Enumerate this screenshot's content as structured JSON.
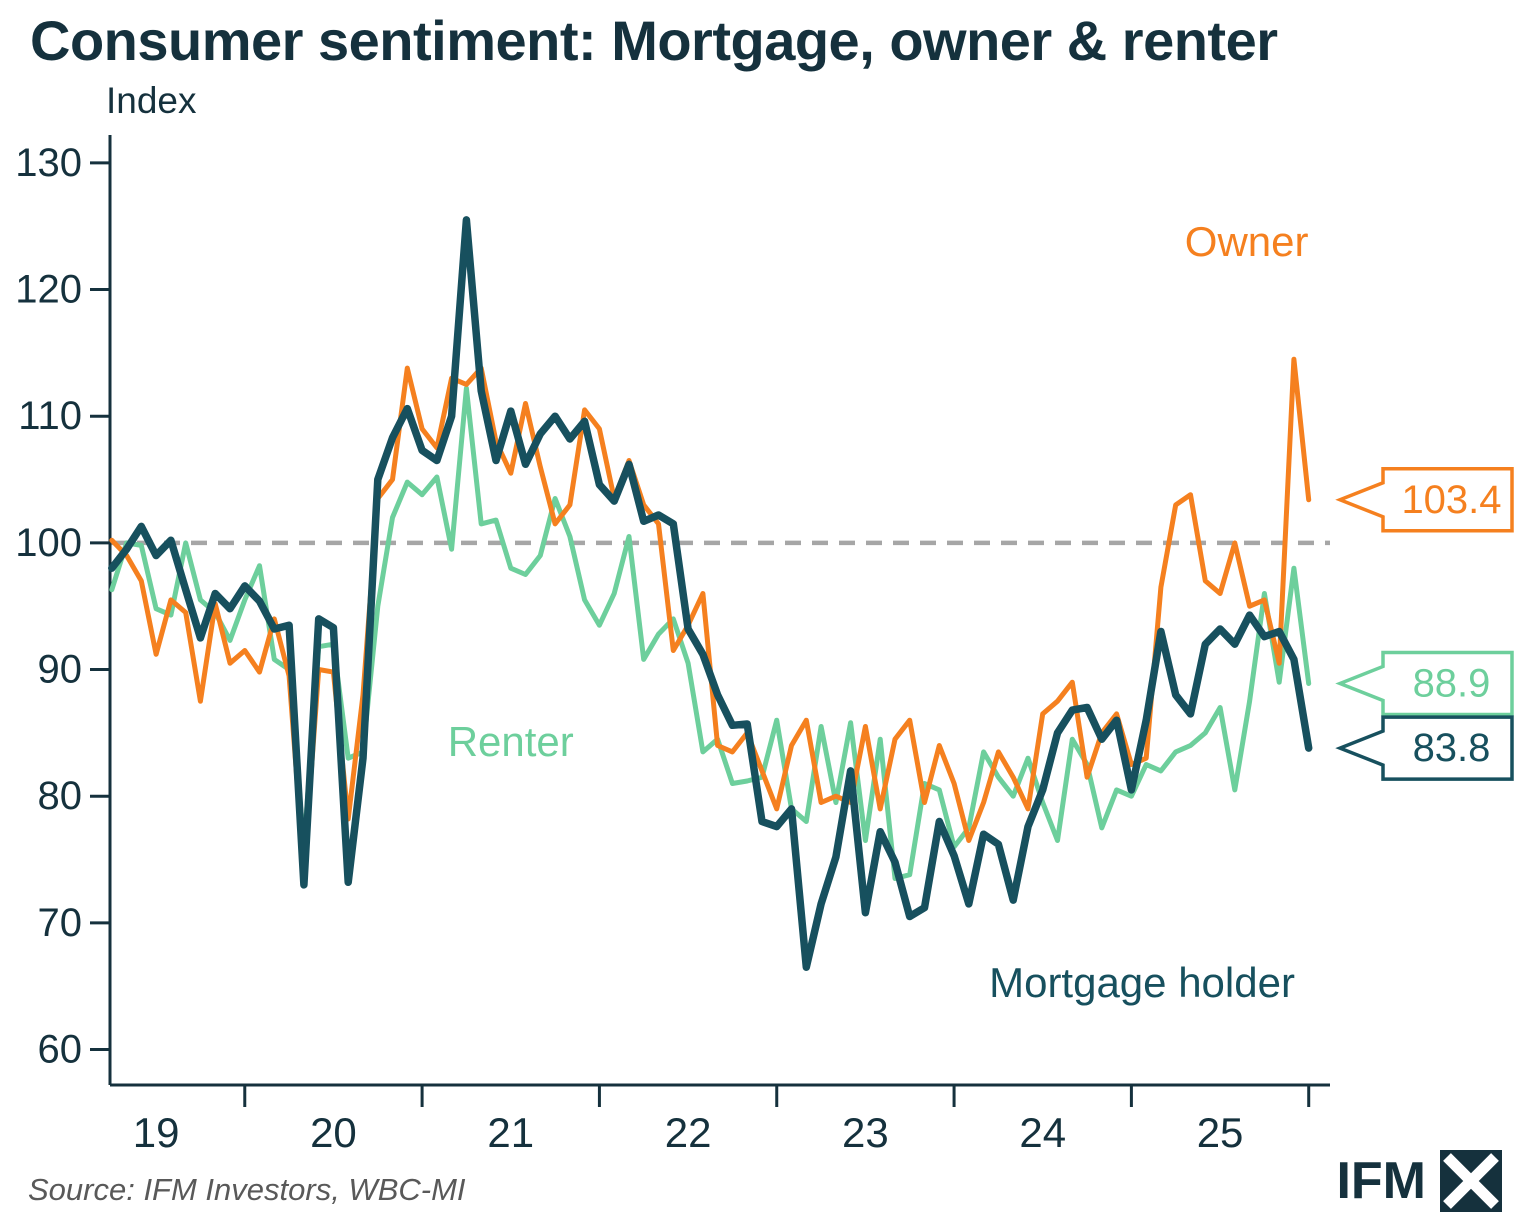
{
  "page": {
    "title": "Consumer sentiment: Mortgage, owner & renter",
    "source": "Source: IFM Investors, WBC-MI",
    "logo_text": "IFM"
  },
  "colors": {
    "title": "#15313d",
    "axis": "#15313d",
    "baseline": "#a6a6a6",
    "source_text": "#595959",
    "mortgage": "#17505e",
    "owner": "#f5801f",
    "renter": "#6dcf9c"
  },
  "chart_data": {
    "type": "line",
    "title": "Consumer sentiment: Mortgage, owner & renter",
    "ylabel": "Index",
    "x_unit": "year (monthly observations)",
    "x_start": 2018.75,
    "x_step": 0.0833333,
    "xlim": [
      2018.74,
      2025.62
    ],
    "ylim": [
      57.2,
      132.2
    ],
    "y_ticks": [
      60,
      70,
      80,
      90,
      100,
      110,
      120,
      130
    ],
    "x_ticks": [
      2019,
      2020,
      2021,
      2022,
      2023,
      2024,
      2025
    ],
    "x_tick_labels": [
      "19",
      "20",
      "21",
      "22",
      "23",
      "24",
      "25"
    ],
    "x_minor_ticks": [
      2019.5,
      2020.5,
      2021.5,
      2022.5,
      2023.5,
      2024.5,
      2025.5
    ],
    "baseline": 100,
    "grid": false,
    "legend_position": "inline-annotations",
    "series": [
      {
        "id": "renter",
        "name": "Renter",
        "color": "#6dcf9c",
        "width": 5,
        "end_label": "88.9",
        "values": [
          96.3,
          100.0,
          99.8,
          94.8,
          94.3,
          100.0,
          95.5,
          94.5,
          92.3,
          95.5,
          98.2,
          90.8,
          90.0,
          76.0,
          91.8,
          92.0,
          83.0,
          83.5,
          95.0,
          102.0,
          104.8,
          103.8,
          105.2,
          99.5,
          112.2,
          101.5,
          101.8,
          98.0,
          97.5,
          99.0,
          103.5,
          100.5,
          95.5,
          93.5,
          96.0,
          100.5,
          90.8,
          92.8,
          94.0,
          90.5,
          83.5,
          84.5,
          81.0,
          81.2,
          81.5,
          86.0,
          79.0,
          78.0,
          85.5,
          79.5,
          85.8,
          76.5,
          84.5,
          73.5,
          73.8,
          81.0,
          80.5,
          76.0,
          77.5,
          83.5,
          81.5,
          80.0,
          83.0,
          79.5,
          76.5,
          84.5,
          82.5,
          77.5,
          80.5,
          80.0,
          82.5,
          82.0,
          83.5,
          84.0,
          85.0,
          87.0,
          80.5,
          87.5,
          96.0,
          89.0,
          98.0,
          88.9
        ]
      },
      {
        "id": "owner",
        "name": "Owner",
        "color": "#f5801f",
        "width": 5,
        "end_label": "103.4",
        "values": [
          100.2,
          99.0,
          97.0,
          91.2,
          95.5,
          94.5,
          87.5,
          95.2,
          90.5,
          91.5,
          89.8,
          94.0,
          89.5,
          74.0,
          90.0,
          89.8,
          78.2,
          88.0,
          103.5,
          105.0,
          113.8,
          109.0,
          107.5,
          113.0,
          112.5,
          113.8,
          108.0,
          105.5,
          111.0,
          106.0,
          101.5,
          103.0,
          110.5,
          109.0,
          103.5,
          106.5,
          103.0,
          101.5,
          91.5,
          93.5,
          96.0,
          84.0,
          83.5,
          85.0,
          82.0,
          79.0,
          84.0,
          86.0,
          79.5,
          80.0,
          79.5,
          85.5,
          79.0,
          84.5,
          86.0,
          79.5,
          84.0,
          81.0,
          76.5,
          79.5,
          83.5,
          81.5,
          79.0,
          86.5,
          87.5,
          89.0,
          81.5,
          85.0,
          86.5,
          82.5,
          83.0,
          96.5,
          103.0,
          103.8,
          97.0,
          96.0,
          100.0,
          95.0,
          95.5,
          90.5,
          114.5,
          103.4
        ]
      },
      {
        "id": "mortgage-holder",
        "name": "Mortgage holder",
        "color": "#17505e",
        "width": 7.5,
        "end_label": "83.8",
        "values": [
          98.0,
          99.5,
          101.3,
          99.0,
          100.2,
          96.3,
          92.5,
          96.0,
          94.8,
          96.6,
          95.4,
          93.2,
          93.5,
          73.0,
          94.0,
          93.3,
          73.2,
          83.0,
          105.0,
          108.3,
          110.6,
          107.3,
          106.5,
          110.0,
          125.5,
          112.0,
          106.5,
          110.4,
          106.2,
          108.6,
          110.0,
          108.2,
          109.6,
          104.6,
          103.3,
          106.2,
          101.7,
          102.2,
          101.5,
          93.2,
          91.2,
          88.0,
          85.6,
          85.7,
          78.0,
          77.6,
          79.0,
          66.5,
          71.5,
          75.2,
          82.0,
          70.8,
          77.2,
          74.8,
          70.5,
          71.2,
          78.0,
          75.3,
          71.5,
          77.0,
          76.2,
          71.8,
          77.6,
          80.5,
          85.0,
          86.8,
          87.0,
          84.5,
          86.0,
          80.5,
          86.0,
          93.0,
          88.0,
          86.5,
          92.0,
          93.2,
          92.0,
          94.3,
          92.6,
          93.0,
          90.8,
          83.8
        ]
      }
    ],
    "annotations": [
      {
        "id": "owner",
        "text": "Owner",
        "x": 2025.15,
        "y": 123.8,
        "color": "#f5801f"
      },
      {
        "id": "renter",
        "text": "Renter",
        "x": 2021.0,
        "y": 84.3,
        "color": "#6dcf9c"
      },
      {
        "id": "mortgage-holder",
        "text": "Mortgage holder",
        "x": 2024.56,
        "y": 65.3,
        "color": "#17505e"
      }
    ]
  }
}
